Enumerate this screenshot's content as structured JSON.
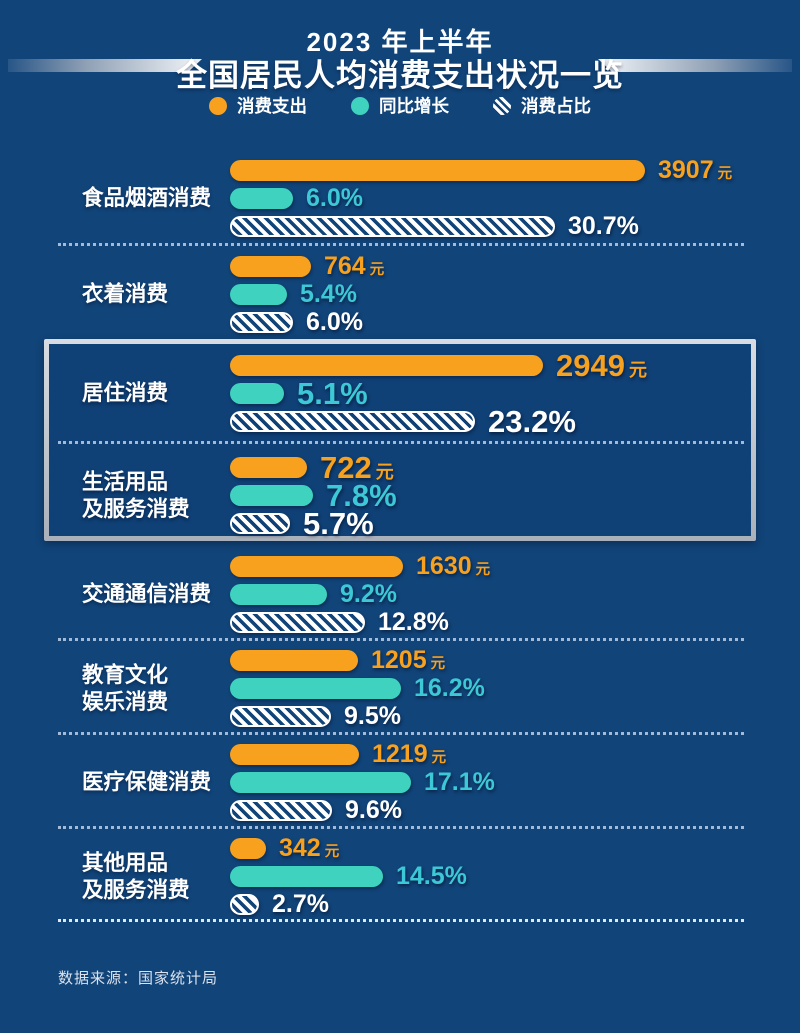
{
  "header": {
    "title_line1": "2023 年上半年",
    "title_line2": "全国居民人均消费支出状况一览"
  },
  "legend": {
    "expense_label": "消费支出",
    "yoy_label": "同比增长",
    "share_label": "消费占比"
  },
  "units": {
    "money": "元"
  },
  "colors": {
    "background": "#114479",
    "highlight_bg": "#0F4076",
    "expense_bar": "#F7A11E",
    "yoy_bar": "#3ED2BF",
    "yoy_text": "#3CC8D6",
    "share_text": "#FFFFFF",
    "highlight_border": "#C2C8D1"
  },
  "rows": [
    {
      "label": "食品烟酒消费",
      "expense": 3907,
      "expense_label": "3907",
      "yoy": 6.0,
      "yoy_label": "6.0%",
      "share": 30.7,
      "share_label": "30.7%",
      "highlight": false
    },
    {
      "label": "衣着消费",
      "expense": 764,
      "expense_label": "764",
      "yoy": 5.4,
      "yoy_label": "5.4%",
      "share": 6.0,
      "share_label": "6.0%",
      "highlight": false
    },
    {
      "label": "居住消费",
      "expense": 2949,
      "expense_label": "2949",
      "yoy": 5.1,
      "yoy_label": "5.1%",
      "share": 23.2,
      "share_label": "23.2%",
      "highlight": true
    },
    {
      "label": "生活用品\n及服务消费",
      "expense": 722,
      "expense_label": "722",
      "yoy": 7.8,
      "yoy_label": "7.8%",
      "share": 5.7,
      "share_label": "5.7%",
      "highlight": true
    },
    {
      "label": "交通通信消费",
      "expense": 1630,
      "expense_label": "1630",
      "yoy": 9.2,
      "yoy_label": "9.2%",
      "share": 12.8,
      "share_label": "12.8%",
      "highlight": false
    },
    {
      "label": "教育文化\n娱乐消费",
      "expense": 1205,
      "expense_label": "1205",
      "yoy": 16.2,
      "yoy_label": "16.2%",
      "share": 9.5,
      "share_label": "9.5%",
      "highlight": false
    },
    {
      "label": "医疗保健消费",
      "expense": 1219,
      "expense_label": "1219",
      "yoy": 17.1,
      "yoy_label": "17.1%",
      "share": 9.6,
      "share_label": "9.6%",
      "highlight": false
    },
    {
      "label": "其他用品\n及服务消费",
      "expense": 342,
      "expense_label": "342",
      "yoy": 14.5,
      "yoy_label": "14.5%",
      "share": 2.7,
      "share_label": "2.7%",
      "highlight": false
    }
  ],
  "footer": {
    "source": "数据来源：国家统计局"
  },
  "chart_data": {
    "type": "bar",
    "title": "2023 年上半年 全国居民人均消费支出状况一览",
    "categories": [
      "食品烟酒消费",
      "衣着消费",
      "居住消费",
      "生活用品及服务消费",
      "交通通信消费",
      "教育文化娱乐消费",
      "医疗保健消费",
      "其他用品及服务消费"
    ],
    "series": [
      {
        "name": "消费支出",
        "unit": "元",
        "values": [
          3907,
          764,
          2949,
          722,
          1630,
          1205,
          1219,
          342
        ]
      },
      {
        "name": "同比增长",
        "unit": "%",
        "values": [
          6.0,
          5.4,
          5.1,
          7.8,
          9.2,
          16.2,
          17.1,
          14.5
        ]
      },
      {
        "name": "消费占比",
        "unit": "%",
        "values": [
          30.7,
          6.0,
          23.2,
          5.7,
          12.8,
          9.5,
          9.6,
          2.7
        ]
      }
    ],
    "highlighted_categories": [
      "居住消费",
      "生活用品及服务消费"
    ],
    "orientation": "horizontal",
    "legend_position": "top",
    "grid": false,
    "source": "数据来源：国家统计局"
  }
}
